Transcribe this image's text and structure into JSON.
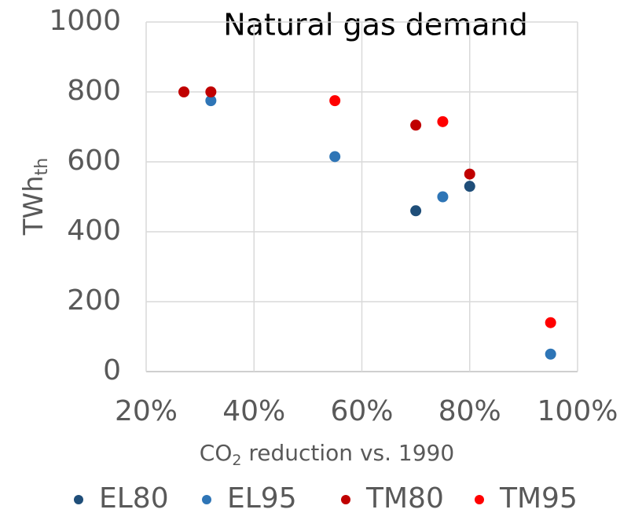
{
  "chart_data": {
    "type": "scatter",
    "title": "Natural gas demand",
    "x_label": {
      "text": "CO",
      "subscript": "2",
      "rest": " reduction vs. 1990"
    },
    "y_label": {
      "text": "TWh",
      "subscript": "th"
    },
    "xlim": [
      20,
      100
    ],
    "xticks": [
      {
        "value": 20,
        "label": "20%"
      },
      {
        "value": 40,
        "label": "40%"
      },
      {
        "value": 60,
        "label": "60%"
      },
      {
        "value": 80,
        "label": "80%"
      },
      {
        "value": 100,
        "label": "100%"
      }
    ],
    "ylim": [
      0,
      1000
    ],
    "yticks": [
      0,
      200,
      400,
      600,
      800,
      1000
    ],
    "grid": true,
    "legend": "bottom",
    "series": [
      {
        "name": "EL80",
        "color": "#1f4e79",
        "x": [
          70,
          80
        ],
        "values": [
          460,
          530
        ]
      },
      {
        "name": "EL95",
        "color": "#2e75b6",
        "x": [
          32,
          55,
          75,
          95
        ],
        "values": [
          775,
          615,
          500,
          50
        ]
      },
      {
        "name": "TM80",
        "color": "#c00000",
        "x": [
          27,
          32,
          70,
          80
        ],
        "values": [
          800,
          800,
          705,
          565
        ]
      },
      {
        "name": "TM95",
        "color": "#ff0000",
        "x": [
          55,
          75,
          95
        ],
        "values": [
          775,
          715,
          140
        ]
      }
    ]
  }
}
